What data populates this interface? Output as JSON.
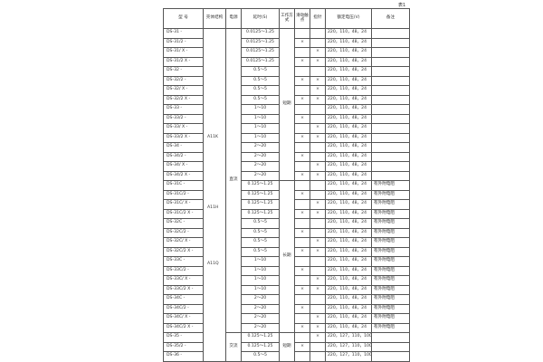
{
  "caption": "表1",
  "headers": [
    "型 号",
    "壳体结构",
    "电源",
    "延时(S)",
    "工作方式",
    "滑动触点",
    "指针",
    "额定电压(V)",
    "备注"
  ],
  "shell_labels": [
    "A11K",
    "A11H",
    "A11Q"
  ],
  "power": [
    {
      "label": "直流",
      "rows": 32
    },
    {
      "label": "交流",
      "rows": 3
    }
  ],
  "work_mode": [
    {
      "label": "短期",
      "rows": 16
    },
    {
      "label": "长期",
      "rows": 16
    },
    {
      "label": "短期",
      "rows": 3
    }
  ],
  "mark": "×",
  "rows": [
    {
      "model": "DS-31 -",
      "delay": "0.0125～1.25",
      "slide": false,
      "pointer": false,
      "voltage": "220，110，48，24",
      "note": ""
    },
    {
      "model": "DS-31/2 -",
      "delay": "0.0125～1.25",
      "slide": true,
      "pointer": false,
      "voltage": "220，110，48，24",
      "note": ""
    },
    {
      "model": "DS-31/ X -",
      "delay": "0.0125～1.25",
      "slide": false,
      "pointer": true,
      "voltage": "220，110，48，24",
      "note": ""
    },
    {
      "model": "DS-31/2 X -",
      "delay": "0.0125～1.25",
      "slide": true,
      "pointer": true,
      "voltage": "220，110，48，24",
      "note": ""
    },
    {
      "model": "DS-32 -",
      "delay": "0.5～5",
      "slide": false,
      "pointer": false,
      "voltage": "220，110，48，24",
      "note": ""
    },
    {
      "model": "DS-32/2 -",
      "delay": "0.5～5",
      "slide": true,
      "pointer": true,
      "voltage": "220，110，48，24",
      "note": ""
    },
    {
      "model": "DS-32/ X -",
      "delay": "0.5～5",
      "slide": false,
      "pointer": true,
      "voltage": "220，110，48，24",
      "note": ""
    },
    {
      "model": "DS-32/2 X -",
      "delay": "0.5～5",
      "slide": true,
      "pointer": true,
      "voltage": "220，110，48，24",
      "note": ""
    },
    {
      "model": "DS-33 -",
      "delay": "1～10",
      "slide": false,
      "pointer": false,
      "voltage": "220，110，48，24",
      "note": ""
    },
    {
      "model": "DS-33/2 -",
      "delay": "1～10",
      "slide": true,
      "pointer": false,
      "voltage": "220，110，48，24",
      "note": ""
    },
    {
      "model": "DS-33/ X -",
      "delay": "1～10",
      "slide": false,
      "pointer": true,
      "voltage": "220，110，48，24",
      "note": ""
    },
    {
      "model": "DS-33/2 X -",
      "delay": "1～10",
      "slide": true,
      "pointer": true,
      "voltage": "220，110，48，24",
      "note": ""
    },
    {
      "model": "DS-34 -",
      "delay": "2～20",
      "slide": false,
      "pointer": false,
      "voltage": "220，110，48，24",
      "note": ""
    },
    {
      "model": "DS-34/2 -",
      "delay": "2～20",
      "slide": true,
      "pointer": false,
      "voltage": "220，110，48，24",
      "note": ""
    },
    {
      "model": "DS-34/ X -",
      "delay": "2～20",
      "slide": false,
      "pointer": true,
      "voltage": "220，110，48，24",
      "note": ""
    },
    {
      "model": "DS-34/2 X -",
      "delay": "2～20",
      "slide": true,
      "pointer": true,
      "voltage": "220，110，48，24",
      "note": ""
    },
    {
      "model": "DS-31C -",
      "delay": "0.125～1.25",
      "slide": false,
      "pointer": false,
      "voltage": "220，110，48，24",
      "note": "有外附电阻"
    },
    {
      "model": "DS-31C/2 -",
      "delay": "0.125～1.25",
      "slide": true,
      "pointer": false,
      "voltage": "220，110，48，24",
      "note": "有外附电阻"
    },
    {
      "model": "DS-31C/ X -",
      "delay": "0.125～1.25",
      "slide": false,
      "pointer": true,
      "voltage": "220，110，48，24",
      "note": "有外附电阻"
    },
    {
      "model": "DS-31C/2 X -",
      "delay": "0.125～1.25",
      "slide": true,
      "pointer": true,
      "voltage": "220，110，48，24",
      "note": "有外附电阻"
    },
    {
      "model": "DS-32C -",
      "delay": "0.5～5",
      "slide": false,
      "pointer": false,
      "voltage": "220，110，48，24",
      "note": "有外附电阻"
    },
    {
      "model": "DS-32C/2 -",
      "delay": "0.5～5",
      "slide": true,
      "pointer": false,
      "voltage": "220，110，48，24",
      "note": "有外附电阻"
    },
    {
      "model": "DS-32C/ X -",
      "delay": "0.5～5",
      "slide": false,
      "pointer": true,
      "voltage": "220，110，48，24",
      "note": "有外附电阻"
    },
    {
      "model": "DS-32C/2 X -",
      "delay": "0.5～5",
      "slide": true,
      "pointer": true,
      "voltage": "220，110，48，24",
      "note": "有外附电阻"
    },
    {
      "model": "DS-33C -",
      "delay": "1～10",
      "slide": false,
      "pointer": false,
      "voltage": "220，110，48，24",
      "note": "有外附电阻"
    },
    {
      "model": "DS-33C/2 -",
      "delay": "1～10",
      "slide": true,
      "pointer": false,
      "voltage": "220，110，48，24",
      "note": "有外附电阻"
    },
    {
      "model": "DS-33C/ X -",
      "delay": "1～10",
      "slide": false,
      "pointer": true,
      "voltage": "220，110，48，24",
      "note": "有外附电阻"
    },
    {
      "model": "DS-33C/2 X -",
      "delay": "1～10",
      "slide": true,
      "pointer": true,
      "voltage": "220，110，48，24",
      "note": "有外附电阻"
    },
    {
      "model": "DS-34C -",
      "delay": "2～20",
      "slide": false,
      "pointer": false,
      "voltage": "220，110，48，24",
      "note": "有外附电阻"
    },
    {
      "model": "DS-34C/2 -",
      "delay": "2～20",
      "slide": true,
      "pointer": false,
      "voltage": "220，110，48，24",
      "note": "有外附电阻"
    },
    {
      "model": "DS-34C/ X -",
      "delay": "2～20",
      "slide": false,
      "pointer": true,
      "voltage": "220，110，48，24",
      "note": "有外附电阻"
    },
    {
      "model": "DS-34C/2 X -",
      "delay": "2～20",
      "slide": true,
      "pointer": true,
      "voltage": "220，110，48，24",
      "note": "有外附电阻"
    },
    {
      "model": "DS-35 -",
      "delay": "0.125～1.25",
      "slide": false,
      "pointer": true,
      "voltage": "220，127，110，100",
      "note": ""
    },
    {
      "model": "DS-35/2 -",
      "delay": "0.125～1.25",
      "slide": true,
      "pointer": false,
      "voltage": "220，127，110，100",
      "note": ""
    },
    {
      "model": "DS-36 -",
      "delay": "0.5～5",
      "slide": false,
      "pointer": false,
      "voltage": "220，127，110，100",
      "note": ""
    }
  ]
}
